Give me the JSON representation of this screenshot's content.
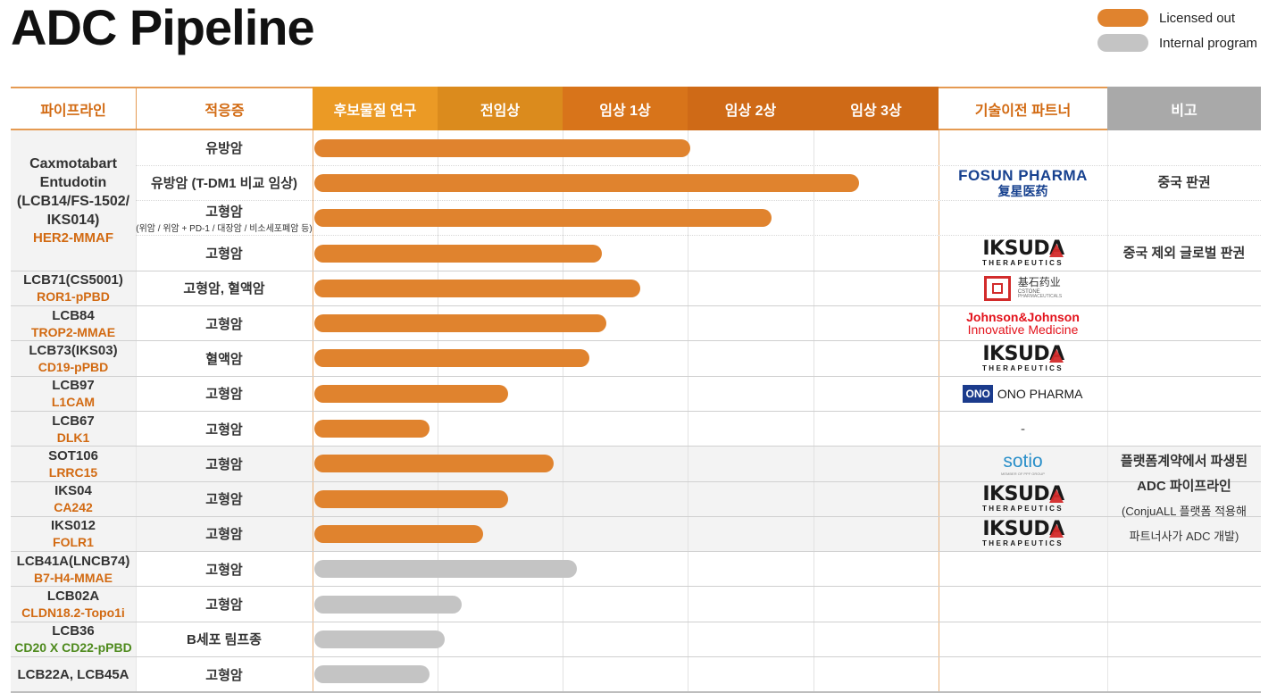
{
  "title": "ADC Pipeline",
  "legend": [
    {
      "label": "Licensed out",
      "color": "#e0832e"
    },
    {
      "label": "Internal program",
      "color": "#c4c4c4"
    }
  ],
  "colors": {
    "accent": "#e0832e",
    "internal": "#c4c4c4",
    "header_orange": "#d26a12",
    "header_gray": "#a9a9a9",
    "border": "#e59a52"
  },
  "header": {
    "pipeline": "파이프라인",
    "indication": "적응증",
    "stages": [
      "후보물질 연구",
      "전임상",
      "임상 1상",
      "임상 2상",
      "임상 3상"
    ],
    "partner": "기술이전 파트너",
    "note": "비고"
  },
  "chart_data": {
    "type": "bar",
    "orientation": "horizontal",
    "x_categories": [
      "후보물질 연구",
      "전임상",
      "임상 1상",
      "임상 2상",
      "임상 3상"
    ],
    "xlim": [
      0,
      5
    ],
    "series": [
      {
        "name": "Licensed out",
        "color": "#e0832e"
      },
      {
        "name": "Internal program",
        "color": "#c4c4c4"
      }
    ],
    "rows": [
      {
        "indication": "유방암",
        "progress": 3.0,
        "status": "licensed"
      },
      {
        "indication": "유방암 (T-DM1 비교 임상)",
        "progress": 4.35,
        "status": "licensed"
      },
      {
        "indication": "고형암",
        "indication_sub": "(위암 / 위암 + PD-1 / 대장암 / 비소세포폐암 등)",
        "progress": 3.65,
        "status": "licensed"
      },
      {
        "indication": "고형암",
        "progress": 2.3,
        "status": "licensed"
      },
      {
        "indication": "고형암, 혈액암",
        "progress": 2.6,
        "status": "licensed"
      },
      {
        "indication": "고형암",
        "progress": 2.33,
        "status": "licensed"
      },
      {
        "indication": "혈액암",
        "progress": 2.2,
        "status": "licensed"
      },
      {
        "indication": "고형암",
        "progress": 1.55,
        "status": "licensed"
      },
      {
        "indication": "고형암",
        "progress": 0.92,
        "status": "licensed"
      },
      {
        "indication": "고형암",
        "progress": 1.91,
        "status": "licensed"
      },
      {
        "indication": "고형암",
        "progress": 1.55,
        "status": "licensed"
      },
      {
        "indication": "고형암",
        "progress": 1.35,
        "status": "licensed"
      },
      {
        "indication": "고형암",
        "progress": 2.1,
        "status": "internal"
      },
      {
        "indication": "고형암",
        "progress": 1.18,
        "status": "internal"
      },
      {
        "indication": "B세포 림프종",
        "progress": 1.04,
        "status": "internal"
      },
      {
        "indication": "고형암",
        "progress": 0.92,
        "status": "internal"
      }
    ]
  },
  "pipelines": [
    {
      "name_lines": [
        "Caxmotabart",
        "Entudotin",
        "(LCB14/FS-1502/",
        "IKS014)"
      ],
      "target": "HER2-MMAF",
      "target_color": "orange",
      "rows": [
        0,
        3
      ]
    },
    {
      "name_lines": [
        "LCB71(CS5001)"
      ],
      "target": "ROR1-pPBD",
      "target_color": "orange",
      "rows": [
        4,
        4
      ]
    },
    {
      "name_lines": [
        "LCB84"
      ],
      "target": "TROP2-MMAE",
      "target_color": "orange",
      "rows": [
        5,
        5
      ]
    },
    {
      "name_lines": [
        "LCB73(IKS03)"
      ],
      "target": "CD19-pPBD",
      "target_color": "orange",
      "rows": [
        6,
        6
      ]
    },
    {
      "name_lines": [
        "LCB97"
      ],
      "target": "L1CAM",
      "target_color": "orange",
      "rows": [
        7,
        7
      ]
    },
    {
      "name_lines": [
        "LCB67"
      ],
      "target": "DLK1",
      "target_color": "orange",
      "rows": [
        8,
        8
      ]
    },
    {
      "name_lines": [
        "SOT106"
      ],
      "target": "LRRC15",
      "target_color": "orange",
      "rows": [
        9,
        9
      ]
    },
    {
      "name_lines": [
        "IKS04"
      ],
      "target": "CA242",
      "target_color": "orange",
      "rows": [
        10,
        10
      ]
    },
    {
      "name_lines": [
        "IKS012"
      ],
      "target": "FOLR1",
      "target_color": "orange",
      "rows": [
        11,
        11
      ]
    },
    {
      "name_lines": [
        "LCB41A(LNCB74)"
      ],
      "target": "B7-H4-MMAE",
      "target_color": "orange",
      "rows": [
        12,
        12
      ]
    },
    {
      "name_lines": [
        "LCB02A"
      ],
      "target": "CLDN18.2-Topo1i",
      "target_color": "orange",
      "rows": [
        13,
        13
      ]
    },
    {
      "name_lines": [
        "LCB36"
      ],
      "target": "CD20 X CD22-pPBD",
      "target_color": "green",
      "rows": [
        14,
        14
      ]
    },
    {
      "name_lines": [
        "LCB22A, LCB45A"
      ],
      "target": "",
      "target_color": "orange",
      "rows": [
        15,
        15
      ]
    }
  ],
  "partners": [
    {
      "rows": [
        0,
        2
      ],
      "logo": "fosun",
      "lines": [
        "FOSUN PHARMA",
        "复星医药"
      ]
    },
    {
      "rows": [
        3,
        3
      ],
      "logo": "iksuda",
      "lines": [
        "IKSUDA",
        "THERAPEUTICS"
      ]
    },
    {
      "rows": [
        4,
        4
      ],
      "logo": "cstone",
      "lines": [
        "基石药业",
        "CSTONE",
        "PHARMACEUTICALS"
      ]
    },
    {
      "rows": [
        5,
        5
      ],
      "logo": "jnj",
      "lines": [
        "Johnson&Johnson",
        "Innovative Medicine"
      ]
    },
    {
      "rows": [
        6,
        6
      ],
      "logo": "iksuda",
      "lines": [
        "IKSUDA",
        "THERAPEUTICS"
      ]
    },
    {
      "rows": [
        7,
        7
      ],
      "logo": "ono",
      "lines": [
        "ONO",
        "ONO PHARMA"
      ]
    },
    {
      "rows": [
        8,
        8
      ],
      "logo": "text",
      "lines": [
        "-"
      ]
    },
    {
      "rows": [
        9,
        9
      ],
      "logo": "sotio",
      "lines": [
        "sotio",
        "MEMBER OF PPF GROUP"
      ]
    },
    {
      "rows": [
        10,
        10
      ],
      "logo": "iksuda",
      "lines": [
        "IKSUDA",
        "THERAPEUTICS"
      ]
    },
    {
      "rows": [
        11,
        11
      ],
      "logo": "iksuda",
      "lines": [
        "IKSUDA",
        "THERAPEUTICS"
      ]
    }
  ],
  "notes": [
    {
      "rows": [
        0,
        2
      ],
      "lines": [
        "중국 판권"
      ]
    },
    {
      "rows": [
        3,
        3
      ],
      "lines": [
        "중국 제외 글로벌 판권"
      ]
    },
    {
      "rows": [
        9,
        11
      ],
      "lines": [
        "플랫폼계약에서 파생된",
        "ADC 파이프라인",
        "(ConjuALL 플랫폼 적용해",
        "파트너사가 ADC 개발)"
      ]
    }
  ],
  "shaded_rows": [
    9,
    10,
    11
  ]
}
